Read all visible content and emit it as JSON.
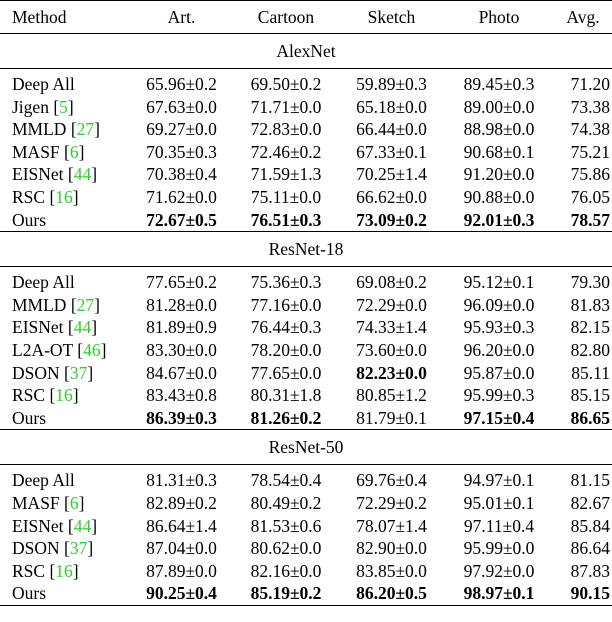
{
  "headers": [
    "Method",
    "Art.",
    "Cartoon",
    "Sketch",
    "Photo",
    "Avg."
  ],
  "sections": [
    {
      "title": "AlexNet",
      "rows": [
        {
          "method": "Deep All",
          "cite": "",
          "values": [
            "65.96±0.2",
            "69.50±0.2",
            "59.89±0.3",
            "89.45±0.3",
            "71.20"
          ],
          "bold": [
            false,
            false,
            false,
            false,
            false
          ]
        },
        {
          "method": "Jigen",
          "cite": "5",
          "values": [
            "67.63±0.0",
            "71.71±0.0",
            "65.18±0.0",
            "89.00±0.0",
            "73.38"
          ],
          "bold": [
            false,
            false,
            false,
            false,
            false
          ]
        },
        {
          "method": "MMLD",
          "cite": "27",
          "values": [
            "69.27±0.0",
            "72.83±0.0",
            "66.44±0.0",
            "88.98±0.0",
            "74.38"
          ],
          "bold": [
            false,
            false,
            false,
            false,
            false
          ]
        },
        {
          "method": "MASF",
          "cite": "6",
          "values": [
            "70.35±0.3",
            "72.46±0.2",
            "67.33±0.1",
            "90.68±0.1",
            "75.21"
          ],
          "bold": [
            false,
            false,
            false,
            false,
            false
          ]
        },
        {
          "method": "EISNet",
          "cite": "44",
          "values": [
            "70.38±0.4",
            "71.59±1.3",
            "70.25±1.4",
            "91.20±0.0",
            "75.86"
          ],
          "bold": [
            false,
            false,
            false,
            false,
            false
          ]
        },
        {
          "method": "RSC",
          "cite": "16",
          "values": [
            "71.62±0.0",
            "75.11±0.0",
            "66.62±0.0",
            "90.88±0.0",
            "76.05"
          ],
          "bold": [
            false,
            false,
            false,
            false,
            false
          ]
        },
        {
          "method": "Ours",
          "cite": "",
          "values": [
            "72.67±0.5",
            "76.51±0.3",
            "73.09±0.2",
            "92.01±0.3",
            "78.57"
          ],
          "bold": [
            true,
            true,
            true,
            true,
            true
          ]
        }
      ]
    },
    {
      "title": "ResNet-18",
      "rows": [
        {
          "method": "Deep All",
          "cite": "",
          "values": [
            "77.65±0.2",
            "75.36±0.3",
            "69.08±0.2",
            "95.12±0.1",
            "79.30"
          ],
          "bold": [
            false,
            false,
            false,
            false,
            false
          ]
        },
        {
          "method": "MMLD",
          "cite": "27",
          "values": [
            "81.28±0.0",
            "77.16±0.0",
            "72.29±0.0",
            "96.09±0.0",
            "81.83"
          ],
          "bold": [
            false,
            false,
            false,
            false,
            false
          ]
        },
        {
          "method": "EISNet",
          "cite": "44",
          "values": [
            "81.89±0.9",
            "76.44±0.3",
            "74.33±1.4",
            "95.93±0.3",
            "82.15"
          ],
          "bold": [
            false,
            false,
            false,
            false,
            false
          ]
        },
        {
          "method": "L2A-OT",
          "cite": "46",
          "values": [
            "83.30±0.0",
            "78.20±0.0",
            "73.60±0.0",
            "96.20±0.0",
            "82.80"
          ],
          "bold": [
            false,
            false,
            false,
            false,
            false
          ]
        },
        {
          "method": "DSON",
          "cite": "37",
          "values": [
            "84.67±0.0",
            "77.65±0.0",
            "82.23±0.0",
            "95.87±0.0",
            "85.11"
          ],
          "bold": [
            false,
            false,
            true,
            false,
            false
          ]
        },
        {
          "method": "RSC",
          "cite": "16",
          "values": [
            "83.43±0.8",
            "80.31±1.8",
            "80.85±1.2",
            "95.99±0.3",
            "85.15"
          ],
          "bold": [
            false,
            false,
            false,
            false,
            false
          ]
        },
        {
          "method": "Ours",
          "cite": "",
          "values": [
            "86.39±0.3",
            "81.26±0.2",
            "81.79±0.1",
            "97.15±0.4",
            "86.65"
          ],
          "bold": [
            true,
            true,
            false,
            true,
            true
          ]
        }
      ]
    },
    {
      "title": "ResNet-50",
      "rows": [
        {
          "method": "Deep All",
          "cite": "",
          "values": [
            "81.31±0.3",
            "78.54±0.4",
            "69.76±0.4",
            "94.97±0.1",
            "81.15"
          ],
          "bold": [
            false,
            false,
            false,
            false,
            false
          ]
        },
        {
          "method": "MASF",
          "cite": "6",
          "values": [
            "82.89±0.2",
            "80.49±0.2",
            "72.29±0.2",
            "95.01±0.1",
            "82.67"
          ],
          "bold": [
            false,
            false,
            false,
            false,
            false
          ]
        },
        {
          "method": "EISNet",
          "cite": "44",
          "values": [
            "86.64±1.4",
            "81.53±0.6",
            "78.07±1.4",
            "97.11±0.4",
            "85.84"
          ],
          "bold": [
            false,
            false,
            false,
            false,
            false
          ]
        },
        {
          "method": "DSON",
          "cite": "37",
          "values": [
            "87.04±0.0",
            "80.62±0.0",
            "82.90±0.0",
            "95.99±0.0",
            "86.64"
          ],
          "bold": [
            false,
            false,
            false,
            false,
            false
          ]
        },
        {
          "method": "RSC",
          "cite": "16",
          "values": [
            "87.89±0.0",
            "82.16±0.0",
            "83.85±0.0",
            "97.92±0.0",
            "87.83"
          ],
          "bold": [
            false,
            false,
            false,
            false,
            false
          ]
        },
        {
          "method": "Ours",
          "cite": "",
          "values": [
            "90.25±0.4",
            "85.19±0.2",
            "86.20±0.5",
            "98.97±0.1",
            "90.15"
          ],
          "bold": [
            true,
            true,
            true,
            true,
            true
          ]
        }
      ]
    }
  ]
}
